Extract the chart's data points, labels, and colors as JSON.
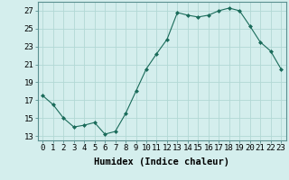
{
  "x": [
    0,
    1,
    2,
    3,
    4,
    5,
    6,
    7,
    8,
    9,
    10,
    11,
    12,
    13,
    14,
    15,
    16,
    17,
    18,
    19,
    20,
    21,
    22,
    23
  ],
  "y": [
    17.5,
    16.5,
    15.0,
    14.0,
    14.2,
    14.5,
    13.2,
    13.5,
    15.5,
    18.0,
    20.5,
    22.2,
    23.8,
    26.8,
    26.5,
    26.3,
    26.5,
    27.0,
    27.3,
    27.0,
    25.3,
    23.5,
    22.5,
    20.5
  ],
  "line_color": "#1a6b5a",
  "marker_color": "#1a6b5a",
  "bg_color": "#d4eeed",
  "grid_color": "#b2d8d4",
  "xlabel": "Humidex (Indice chaleur)",
  "ylim": [
    12.5,
    28
  ],
  "xlim": [
    -0.5,
    23.5
  ],
  "yticks": [
    13,
    15,
    17,
    19,
    21,
    23,
    25,
    27
  ],
  "xticks": [
    0,
    1,
    2,
    3,
    4,
    5,
    6,
    7,
    8,
    9,
    10,
    11,
    12,
    13,
    14,
    15,
    16,
    17,
    18,
    19,
    20,
    21,
    22,
    23
  ],
  "label_fontsize": 7.5,
  "tick_fontsize": 6.5
}
